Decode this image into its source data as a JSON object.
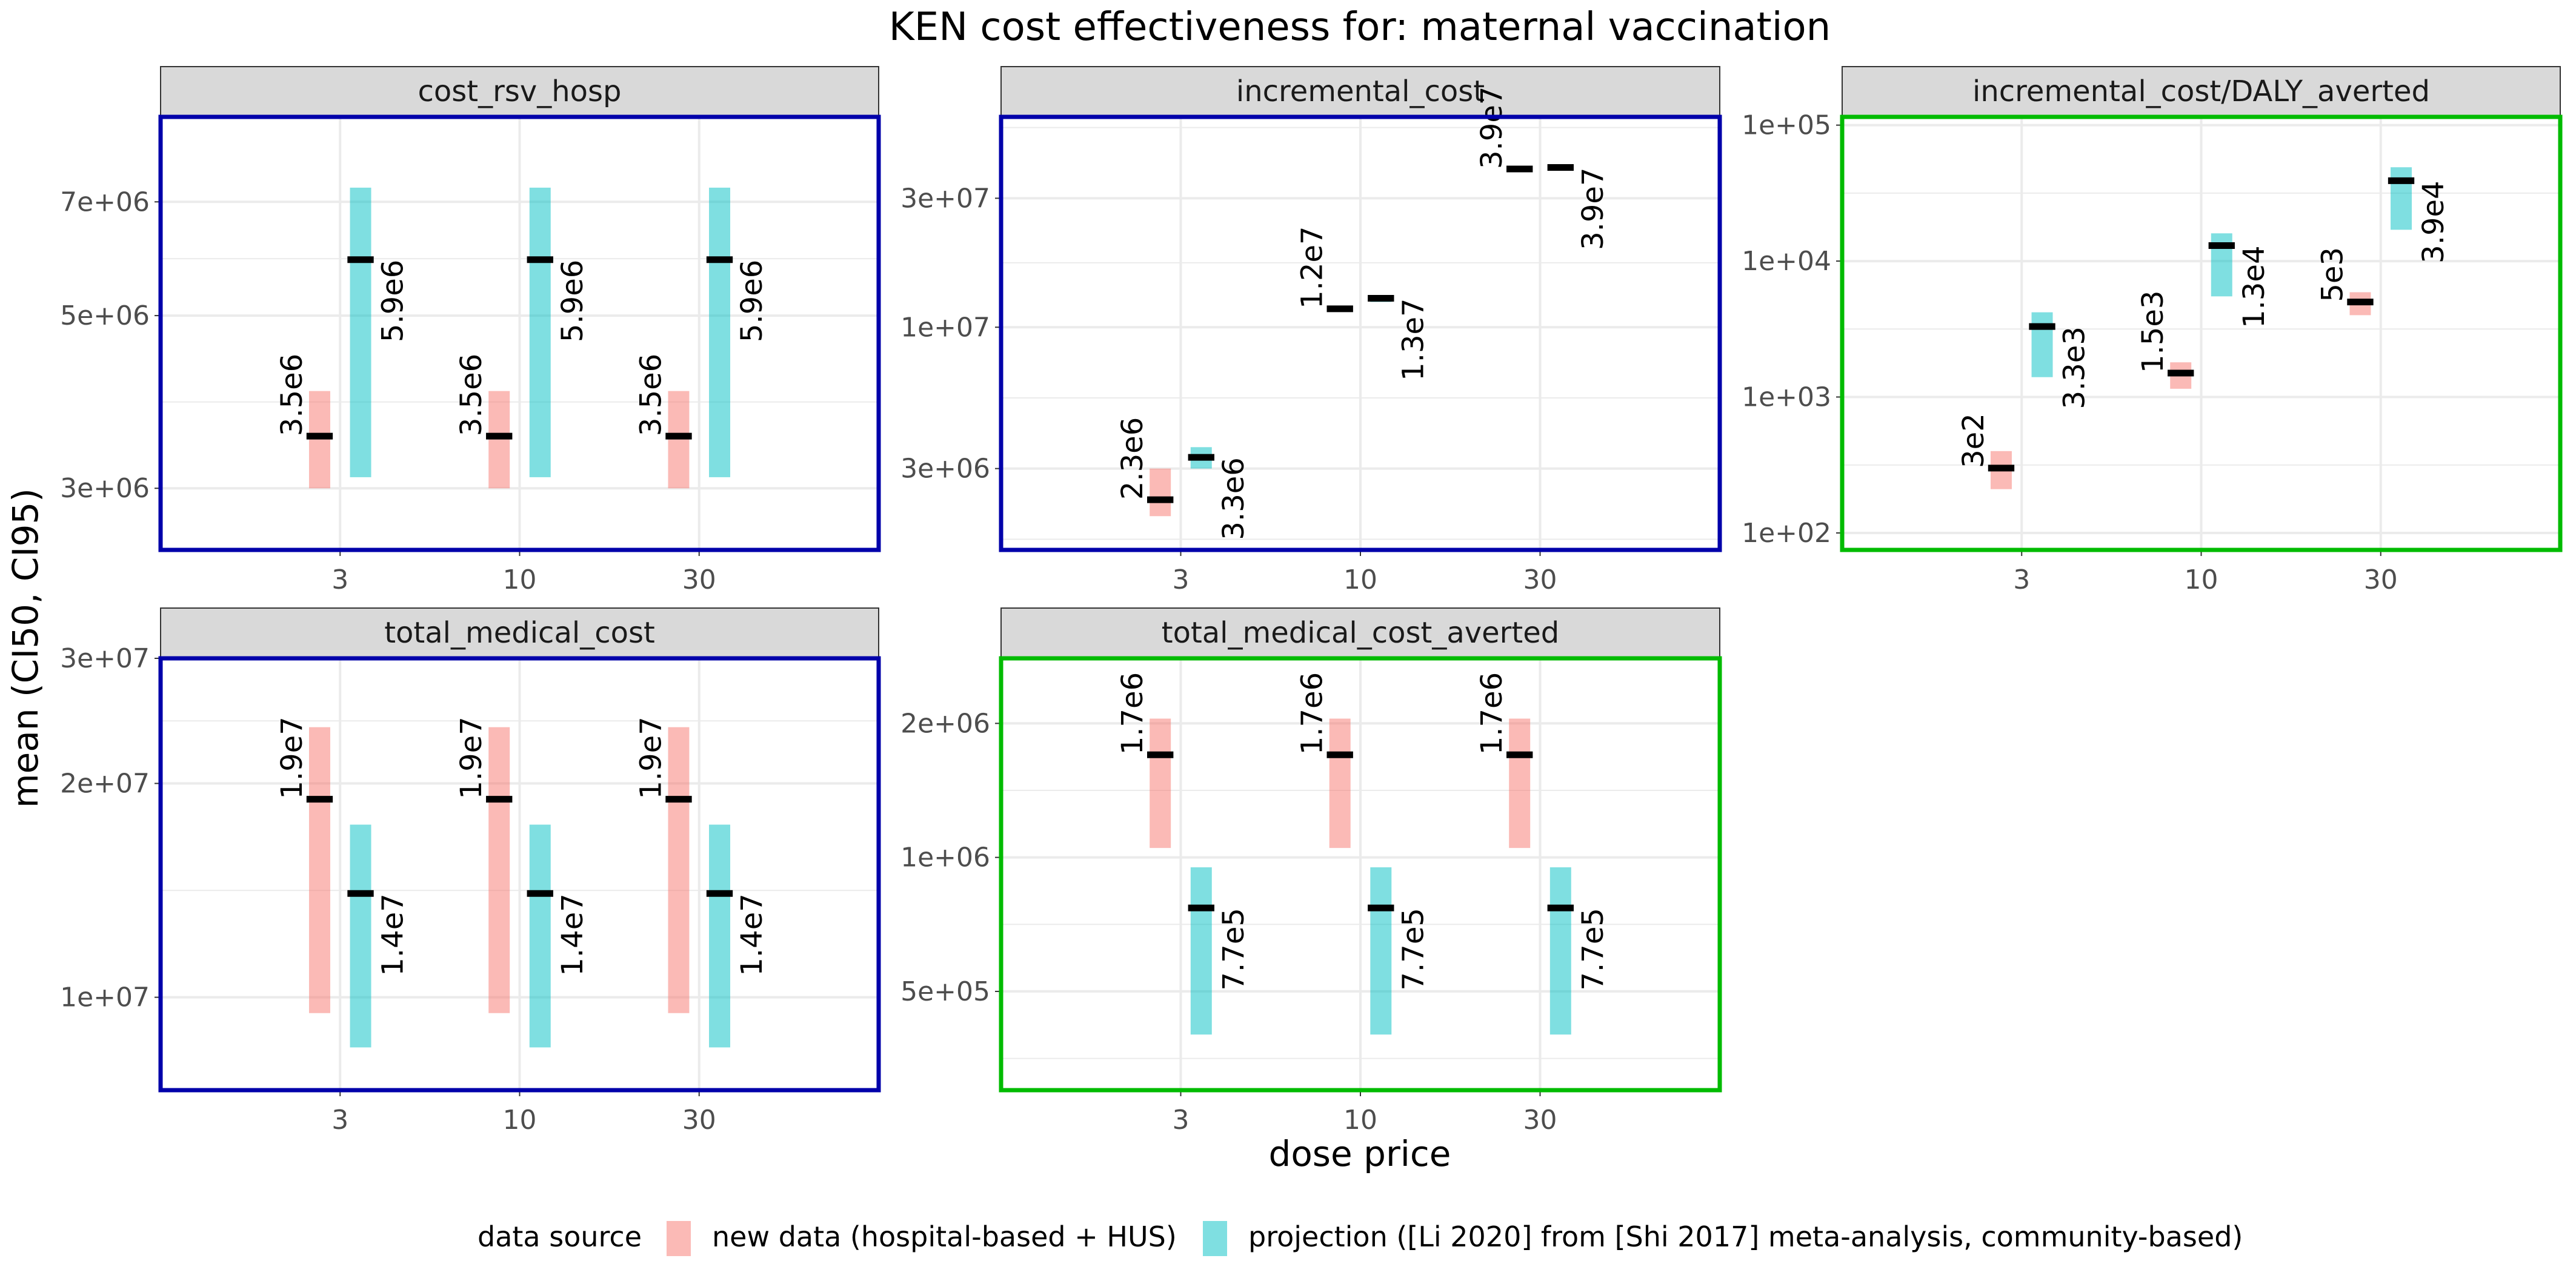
{
  "title": "KEN cost effectiveness for: maternal vaccination",
  "xlabel": "dose price",
  "ylabel": "mean (CI50, CI95)",
  "legend": {
    "title": "data source",
    "placement": "bottom",
    "entries": [
      {
        "label": "new data (hospital-based + HUS)",
        "color": "#F8766D"
      },
      {
        "label": "projection ([Li 2020] from [Shi 2017] meta-analysis, community-based)",
        "color": "#00BFC4"
      }
    ]
  },
  "colors": {
    "new_data": "#F8766D",
    "projection": "#00BFC4",
    "frame_blue": "#0000AA",
    "frame_green": "#00BB00",
    "strip_bg": "#D9D9D9",
    "grid": "#EBEBEB"
  },
  "chart_data": [
    {
      "type": "bar",
      "facet": "cost_rsv_hosp",
      "frame": "blue",
      "scale": "log",
      "categories": [
        "3",
        "10",
        "30"
      ],
      "yticks": [
        3000000,
        5000000,
        7000000
      ],
      "ytick_labels": [
        "3e+06",
        "5e+06",
        "7e+06"
      ],
      "ylim": [
        2500000,
        9000000
      ],
      "series": [
        {
          "name": "new data (hospital-based + HUS)",
          "mean": [
            3500000,
            3500000,
            3500000
          ],
          "low": [
            3000000,
            3000000,
            3000000
          ],
          "high": [
            4000000,
            4000000,
            4000000
          ],
          "labels": [
            "3.5e6",
            "3.5e6",
            "3.5e6"
          ]
        },
        {
          "name": "projection ([Li 2020] from [Shi 2017] meta-analysis, community-based)",
          "mean": [
            5900000,
            5900000,
            5900000
          ],
          "low": [
            3100000,
            3100000,
            3100000
          ],
          "high": [
            7300000,
            7300000,
            7300000
          ],
          "labels": [
            "5.9e6",
            "5.9e6",
            "5.9e6"
          ]
        }
      ]
    },
    {
      "type": "bar",
      "facet": "incremental_cost",
      "frame": "blue",
      "scale": "log",
      "categories": [
        "3",
        "10",
        "30"
      ],
      "yticks": [
        3000000,
        10000000,
        30000000
      ],
      "ytick_labels": [
        "3e+06",
        "1e+07",
        "3e+07"
      ],
      "ylim": [
        1500000,
        60000000
      ],
      "series": [
        {
          "name": "new data (hospital-based + HUS)",
          "mean": [
            2300000,
            11700000,
            38500000
          ],
          "low": [
            2000000,
            11400000,
            38000000
          ],
          "high": [
            3000000,
            12000000,
            39000000
          ],
          "labels": [
            "2.3e6",
            "1.2e7",
            "3.9e7"
          ]
        },
        {
          "name": "projection ([Li 2020] from [Shi 2017] meta-analysis, community-based)",
          "mean": [
            3300000,
            12800000,
            39000000
          ],
          "low": [
            3000000,
            12400000,
            38500000
          ],
          "high": [
            3600000,
            13100000,
            40000000
          ],
          "labels": [
            "3.3e6",
            "1.3e7",
            "3.9e7"
          ]
        }
      ]
    },
    {
      "type": "bar",
      "facet": "incremental_cost/DALY_averted",
      "frame": "green",
      "scale": "log",
      "categories": [
        "3",
        "10",
        "30"
      ],
      "yticks": [
        100,
        1000,
        10000,
        100000
      ],
      "ytick_labels": [
        "1e+02",
        "1e+03",
        "1e+04",
        "1e+05"
      ],
      "ylim": [
        75,
        115000
      ],
      "series": [
        {
          "name": "new data (hospital-based + HUS)",
          "mean": [
            300,
            1500,
            5000
          ],
          "low": [
            210,
            1150,
            4000
          ],
          "high": [
            400,
            1800,
            5900
          ],
          "labels": [
            "3e2",
            "1.5e3",
            "5e3"
          ]
        },
        {
          "name": "projection ([Li 2020] from [Shi 2017] meta-analysis, community-based)",
          "mean": [
            3300,
            13000,
            39000
          ],
          "low": [
            1400,
            5500,
            17000
          ],
          "high": [
            4200,
            16000,
            49000
          ],
          "labels": [
            "3.3e3",
            "1.3e4",
            "3.9e4"
          ]
        }
      ]
    },
    {
      "type": "bar",
      "facet": "total_medical_cost",
      "frame": "blue",
      "scale": "log",
      "categories": [
        "3",
        "10",
        "30"
      ],
      "yticks": [
        10000000,
        20000000,
        30000000
      ],
      "ytick_labels": [
        "1e+07",
        "2e+07",
        "3e+07"
      ],
      "ylim": [
        7400000,
        30000000
      ],
      "series": [
        {
          "name": "new data (hospital-based + HUS)",
          "mean": [
            19000000,
            19000000,
            19000000
          ],
          "low": [
            9500000,
            9500000,
            9500000
          ],
          "high": [
            24000000,
            24000000,
            24000000
          ],
          "labels": [
            "1.9e7",
            "1.9e7",
            "1.9e7"
          ]
        },
        {
          "name": "projection ([Li 2020] from [Shi 2017] meta-analysis, community-based)",
          "mean": [
            14000000,
            14000000,
            14000000
          ],
          "low": [
            8500000,
            8500000,
            8500000
          ],
          "high": [
            17500000,
            17500000,
            17500000
          ],
          "labels": [
            "1.4e7",
            "1.4e7",
            "1.4e7"
          ]
        }
      ]
    },
    {
      "type": "bar",
      "facet": "total_medical_cost_averted",
      "frame": "green",
      "scale": "log",
      "categories": [
        "3",
        "10",
        "30"
      ],
      "yticks": [
        500000,
        1000000,
        2000000
      ],
      "ytick_labels": [
        "5e+05",
        "1e+06",
        "2e+06"
      ],
      "ylim": [
        300000,
        2800000
      ],
      "series": [
        {
          "name": "new data (hospital-based + HUS)",
          "mean": [
            1700000,
            1700000,
            1700000
          ],
          "low": [
            1050000,
            1050000,
            1050000
          ],
          "high": [
            2050000,
            2050000,
            2050000
          ],
          "labels": [
            "1.7e6",
            "1.7e6",
            "1.7e6"
          ]
        },
        {
          "name": "projection ([Li 2020] from [Shi 2017] meta-analysis, community-based)",
          "mean": [
            770000,
            770000,
            770000
          ],
          "low": [
            400000,
            400000,
            400000
          ],
          "high": [
            950000,
            950000,
            950000
          ],
          "labels": [
            "7.7e5",
            "7.7e5",
            "7.7e5"
          ]
        }
      ]
    }
  ]
}
